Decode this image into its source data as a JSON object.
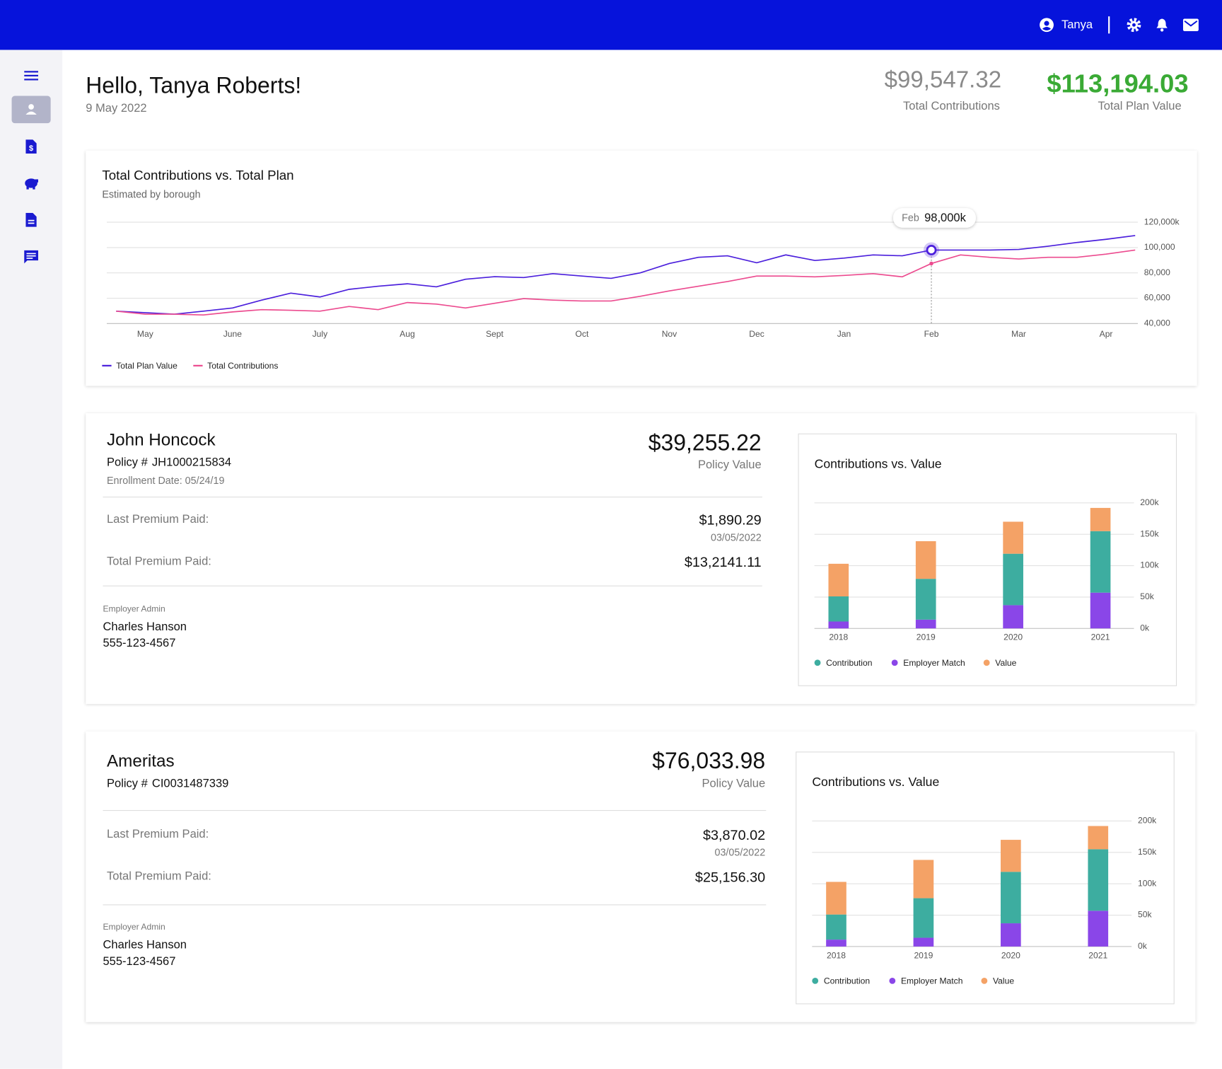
{
  "header": {
    "user": "Tanya"
  },
  "greeting": {
    "title": "Hello, Tanya Roberts!",
    "date": "9 May 2022"
  },
  "summary": [
    {
      "value": "$99,547.32",
      "label": "Total Contributions"
    },
    {
      "value": "$113,194.03",
      "label": "Total Plan Value"
    }
  ],
  "policies": [
    {
      "name": "John Honcock",
      "policy_label": "Policy #",
      "policy_number": "JH1000215834",
      "enrollment": "Enrollment Date: 05/24/19",
      "value": "$39,255.22",
      "value_label": "Policy Value",
      "last_premium_label": "Last Premium Paid:",
      "last_premium": "$1,890.29",
      "last_premium_date": "03/05/2022",
      "total_premium_label": "Total Premium Paid:",
      "total_premium": "$13,2141.11",
      "admin_label": "Employer Admin",
      "admin_name": "Charles Hanson",
      "admin_phone": "555-123-4567"
    },
    {
      "name": "Ameritas",
      "policy_label": "Policy #",
      "policy_number": "CI0031487339",
      "value": "$76,033.98",
      "value_label": "Policy Value",
      "last_premium_label": "Last Premium Paid:",
      "last_premium": "$3,870.02",
      "last_premium_date": "03/05/2022",
      "total_premium_label": "Total Premium Paid:",
      "total_premium": "$25,156.30",
      "admin_label": "Employer Admin",
      "admin_name": "Charles Hanson",
      "admin_phone": "555-123-4567"
    }
  ],
  "chart_data": [
    {
      "type": "line",
      "title": "Total Contributions vs. Total Plan",
      "subtitle": "Estimated by borough",
      "categories": [
        null,
        "May",
        null,
        null,
        "June",
        null,
        null,
        "July",
        null,
        null,
        "Aug",
        null,
        null,
        "Sept",
        null,
        null,
        "Oct",
        null,
        null,
        "Nov",
        null,
        null,
        "Dec",
        null,
        null,
        "Jan",
        null,
        null,
        "Feb",
        null,
        null,
        "Mar",
        null,
        null,
        "Apr",
        null
      ],
      "series": [
        {
          "name": "Total Plan Value",
          "color": "#4b1fdc",
          "values": [
            49800,
            48600,
            47400,
            49800,
            52300,
            58500,
            64000,
            61000,
            67000,
            69500,
            71400,
            69000,
            75000,
            77000,
            76300,
            79400,
            77500,
            75700,
            80000,
            87400,
            92300,
            93500,
            88000,
            94200,
            89800,
            91700,
            94200,
            93500,
            98000,
            98000,
            98000,
            98500,
            101000,
            104000,
            106500,
            109500
          ]
        },
        {
          "name": "Total Contributions",
          "color": "#ec4b8f",
          "values": [
            49800,
            47400,
            47400,
            46800,
            49200,
            51000,
            50500,
            49800,
            53500,
            51000,
            56600,
            55400,
            52300,
            56000,
            59700,
            58500,
            57800,
            57800,
            61500,
            65800,
            69500,
            73200,
            77500,
            77500,
            76900,
            78000,
            79400,
            76900,
            87400,
            94200,
            92300,
            91000,
            92300,
            92300,
            94800,
            98000
          ]
        }
      ],
      "ylim": [
        40000,
        120000
      ],
      "yticks": [
        {
          "value": 40000,
          "label": "40,000"
        },
        {
          "value": 60000,
          "label": "60,000"
        },
        {
          "value": 80000,
          "label": "80,000"
        },
        {
          "value": 100000,
          "label": "100,000"
        },
        {
          "value": 120000,
          "label": "120,000k"
        }
      ],
      "grid": true,
      "legend": "bottom-left",
      "tooltip": {
        "category": "Feb",
        "text": "98,000k"
      }
    },
    {
      "type": "bar",
      "stacked": true,
      "title": "Contributions vs. Value",
      "categories": [
        "2018",
        "2019",
        "2020",
        "2021"
      ],
      "series": [
        {
          "name": "Contribution",
          "color": "#3dada0",
          "values": [
            40,
            65,
            82,
            98
          ]
        },
        {
          "name": "Employer Match",
          "color": "#8a46e8",
          "values": [
            11,
            14,
            37,
            57
          ]
        },
        {
          "name": "Value",
          "color": "#f4a266",
          "values": [
            52,
            60,
            51,
            37
          ]
        }
      ],
      "ylim": [
        0,
        200
      ],
      "yticks": [
        {
          "value": 0,
          "label": "0k"
        },
        {
          "value": 50,
          "label": "50k"
        },
        {
          "value": 100,
          "label": "100k"
        },
        {
          "value": 150,
          "label": "150k"
        },
        {
          "value": 200,
          "label": "200k"
        }
      ],
      "grid": true,
      "legend": "bottom-left"
    },
    {
      "type": "bar",
      "stacked": true,
      "title": "Contributions vs. Value",
      "categories": [
        "2018",
        "2019",
        "2020",
        "2021"
      ],
      "series": [
        {
          "name": "Contribution",
          "color": "#3dada0",
          "values": [
            40,
            63,
            82,
            98
          ]
        },
        {
          "name": "Employer Match",
          "color": "#8a46e8",
          "values": [
            11,
            14,
            37,
            57
          ]
        },
        {
          "name": "Value",
          "color": "#f4a266",
          "values": [
            52,
            61,
            51,
            37
          ]
        }
      ],
      "ylim": [
        0,
        200
      ],
      "yticks": [
        {
          "value": 0,
          "label": "0k"
        },
        {
          "value": 50,
          "label": "50k"
        },
        {
          "value": 100,
          "label": "100k"
        },
        {
          "value": 150,
          "label": "150k"
        },
        {
          "value": 200,
          "label": "200k"
        }
      ],
      "grid": true,
      "legend": "bottom-left"
    }
  ]
}
